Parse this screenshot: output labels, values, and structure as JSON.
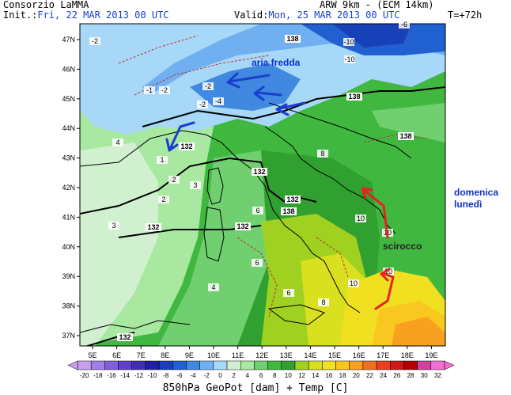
{
  "header": {
    "org": "Consorzio LaMMA",
    "model": "ARW 9km - (ECM 14km)",
    "init_label": "Init.:",
    "init_value": "Fri, 22 MAR 2013   00 UTC",
    "valid_label": "Valid:",
    "valid_value": "Mon, 25 MAR 2013   00 UTC",
    "step": "T=+72h"
  },
  "axes": {
    "lon_labels": [
      "5E",
      "6E",
      "7E",
      "8E",
      "9E",
      "10E",
      "11E",
      "12E",
      "13E",
      "14E",
      "15E",
      "16E",
      "17E",
      "18E",
      "19E"
    ],
    "lat_labels": [
      "47N",
      "46N",
      "45N",
      "44N",
      "43N",
      "42N",
      "41N",
      "40N",
      "39N",
      "38N",
      "37N"
    ]
  },
  "annotations": {
    "cold_air": "aria fredda",
    "sirocco": "scirocco",
    "days_line1": "domenica",
    "days_line2": "lunedì"
  },
  "geopotential_labels": [
    "138",
    "138",
    "138",
    "132",
    "132",
    "132",
    "132",
    "132",
    "132",
    "138"
  ],
  "temperature_labels": [
    "-2",
    "-2",
    "-2",
    "-2",
    "-4",
    "-1",
    "2",
    "4",
    "4",
    "1",
    "3",
    "3",
    "2",
    "8",
    "6",
    "6",
    "6",
    "10",
    "10",
    "10",
    "10",
    "8",
    "-6",
    "-10",
    "-10"
  ],
  "colorbar": {
    "title": "850hPa GeoPot [dam] + Temp [C]",
    "labels": [
      "-20",
      "-18",
      "-16",
      "-14",
      "-12",
      "-10",
      "-8",
      "-6",
      "-4",
      "-2",
      "0",
      "2",
      "4",
      "6",
      "8",
      "10",
      "12",
      "14",
      "16",
      "18",
      "20",
      "22",
      "24",
      "26",
      "28",
      "30",
      "32"
    ],
    "colors": [
      "#c8a0f0",
      "#a080e8",
      "#8060d8",
      "#6040c8",
      "#4030b0",
      "#2020a0",
      "#1840b8",
      "#2060d0",
      "#4088e0",
      "#70b0f0",
      "#a8d8f8",
      "#d0f0d0",
      "#a8e8a0",
      "#70d070",
      "#40b840",
      "#30a030",
      "#a0d020",
      "#d8e020",
      "#f0e020",
      "#f8c820",
      "#f8a020",
      "#f07020",
      "#e84020",
      "#d01818",
      "#b00000",
      "#d040a0",
      "#f070d0"
    ]
  }
}
